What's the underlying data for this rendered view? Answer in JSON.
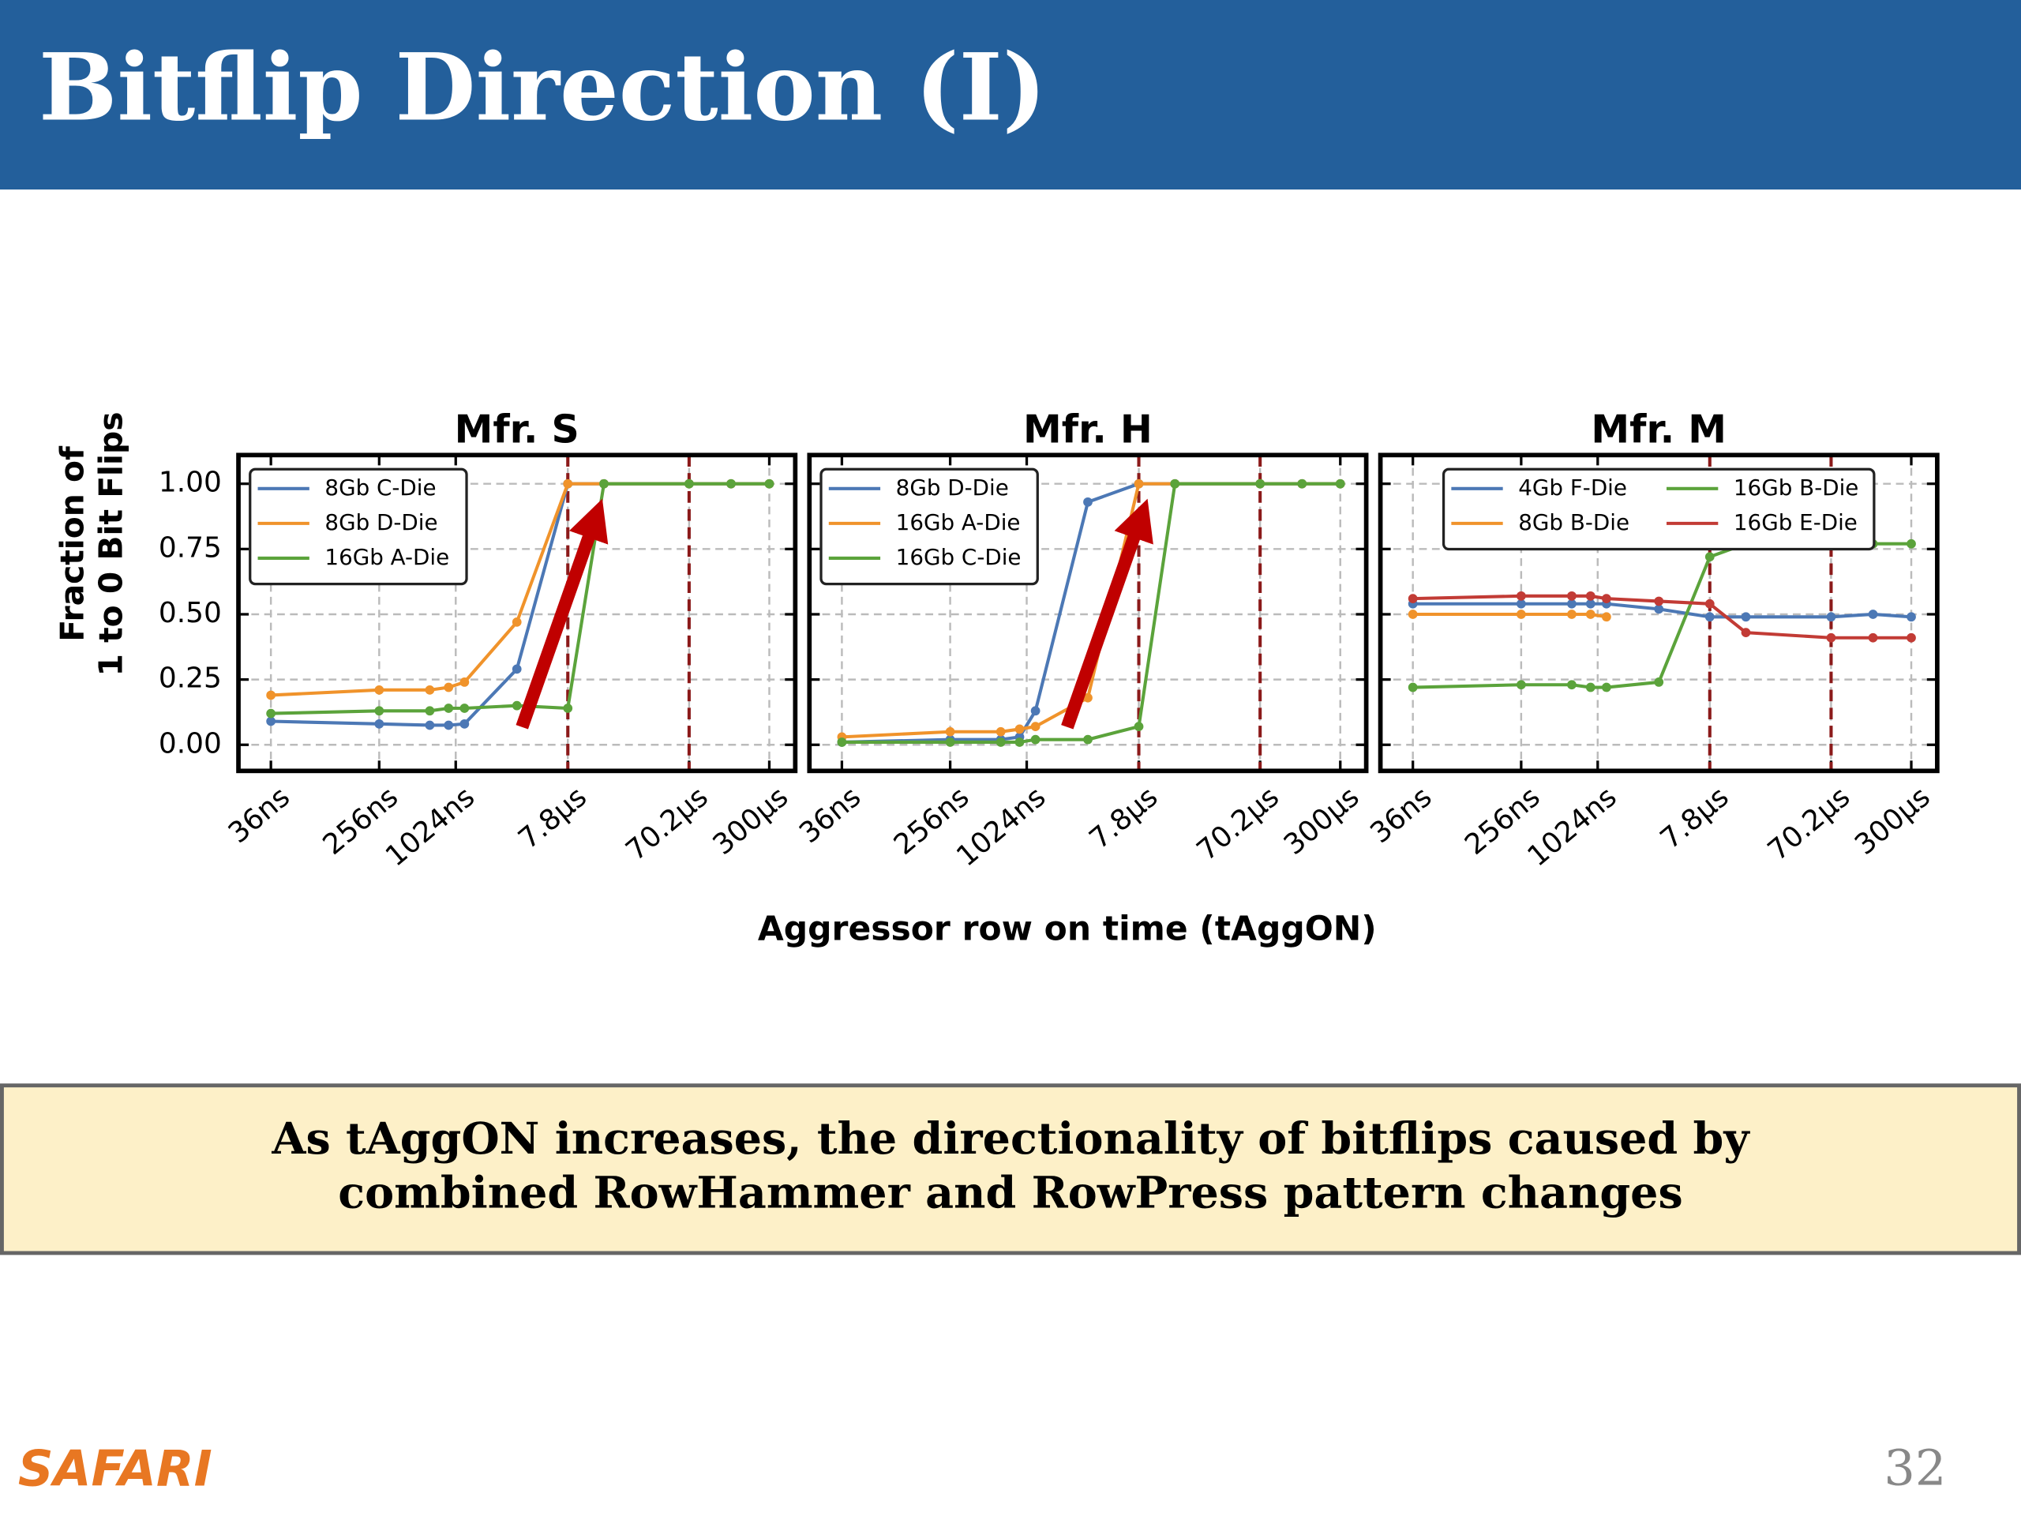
{
  "header": {
    "title": "Bitflip Direction (I)"
  },
  "shared_axes": {
    "xlabel": "Aggressor row on time (tAggON)",
    "ylabel": [
      "Fraction of",
      "1 to 0 Bit Flips"
    ]
  },
  "chart_data": [
    {
      "type": "line",
      "title": "Mfr. S",
      "xscale": "log",
      "grid": true,
      "legend": {
        "loc": "upper left",
        "ncol": 1
      },
      "x": [
        36,
        256,
        640,
        900,
        1200,
        3100,
        7800,
        15000,
        70200,
        150000,
        300000
      ],
      "xlim": [
        20,
        480000
      ],
      "ylim": [
        -0.1,
        1.11
      ],
      "xticks": [
        {
          "value": 36,
          "label": "36ns"
        },
        {
          "value": 256,
          "label": "256ns"
        },
        {
          "value": 1024,
          "label": "1024ns"
        },
        {
          "value": 7800,
          "label": "7.8µs"
        },
        {
          "value": 70200,
          "label": "70.2µs"
        },
        {
          "value": 300000,
          "label": "300µs"
        }
      ],
      "yticks": [
        {
          "value": 0,
          "label": "0.00"
        },
        0.25,
        {
          "value": 0.5,
          "label": "0.50"
        },
        0.75,
        {
          "value": 1,
          "label": "1.00"
        }
      ],
      "vlines": {
        "color": "#8b1a1a",
        "values": [
          7800,
          70200
        ]
      },
      "series": [
        {
          "name": "8Gb C-Die",
          "color": "#4c78b5",
          "values": [
            0.09,
            0.08,
            0.075,
            0.075,
            0.08,
            0.29,
            1.0,
            1.0,
            1.0,
            1.0,
            1.0
          ]
        },
        {
          "name": "8Gb D-Die",
          "color": "#f0932b",
          "values": [
            0.19,
            0.21,
            0.21,
            0.22,
            0.24,
            0.47,
            1.0,
            1.0,
            1.0,
            1.0,
            1.0
          ]
        },
        {
          "name": "16Gb A-Die",
          "color": "#5ba33b",
          "values": [
            0.12,
            0.13,
            0.13,
            0.14,
            0.14,
            0.15,
            0.14,
            1.0,
            1.0,
            1.0,
            1.0
          ]
        }
      ]
    },
    {
      "type": "line",
      "title": "Mfr. H",
      "xscale": "log",
      "grid": true,
      "legend": {
        "loc": "upper left",
        "ncol": 1
      },
      "x": [
        36,
        256,
        640,
        900,
        1200,
        3100,
        7800,
        15000,
        70200,
        150000,
        300000
      ],
      "xlim": [
        20,
        480000
      ],
      "ylim": [
        -0.1,
        1.11
      ],
      "xticks": [
        {
          "value": 36,
          "label": "36ns"
        },
        {
          "value": 256,
          "label": "256ns"
        },
        {
          "value": 1024,
          "label": "1024ns"
        },
        {
          "value": 7800,
          "label": "7.8µs"
        },
        {
          "value": 70200,
          "label": "70.2µs"
        },
        {
          "value": 300000,
          "label": "300µs"
        }
      ],
      "yticks": [
        0,
        0.25,
        0.5,
        0.75,
        1
      ],
      "vlines": {
        "color": "#8b1a1a",
        "values": [
          7800,
          70200
        ]
      },
      "series": [
        {
          "name": "8Gb D-Die",
          "color": "#4c78b5",
          "values": [
            0.01,
            0.02,
            0.02,
            0.03,
            0.13,
            0.93,
            1.0,
            1.0,
            1.0,
            1.0,
            1.0
          ]
        },
        {
          "name": "16Gb A-Die",
          "color": "#f0932b",
          "values": [
            0.03,
            0.05,
            0.05,
            0.06,
            0.07,
            0.18,
            1.0,
            1.0,
            1.0,
            1.0,
            1.0
          ]
        },
        {
          "name": "16Gb C-Die",
          "color": "#5ba33b",
          "values": [
            0.01,
            0.01,
            0.01,
            0.01,
            0.02,
            0.02,
            0.07,
            1.0,
            1.0,
            1.0,
            1.0
          ]
        }
      ]
    },
    {
      "type": "line",
      "title": "Mfr. M",
      "xscale": "log",
      "grid": true,
      "legend": {
        "loc": "upper center",
        "ncol": 2
      },
      "x": [
        36,
        256,
        640,
        900,
        1200,
        3100,
        7800,
        15000,
        70200,
        150000,
        300000
      ],
      "xlim": [
        20,
        480000
      ],
      "ylim": [
        -0.1,
        1.11
      ],
      "xticks": [
        {
          "value": 36,
          "label": "36ns"
        },
        {
          "value": 256,
          "label": "256ns"
        },
        {
          "value": 1024,
          "label": "1024ns"
        },
        {
          "value": 7800,
          "label": "7.8µs"
        },
        {
          "value": 70200,
          "label": "70.2µs"
        },
        {
          "value": 300000,
          "label": "300µs"
        }
      ],
      "yticks": [
        0,
        0.25,
        0.5,
        0.75,
        1
      ],
      "vlines": {
        "color": "#8b1a1a",
        "values": [
          7800,
          70200
        ]
      },
      "series": [
        {
          "name": "4Gb F-Die",
          "color": "#4c78b5",
          "values": [
            0.54,
            0.54,
            0.54,
            0.54,
            0.54,
            0.52,
            0.49,
            0.49,
            0.49,
            0.5,
            0.49
          ]
        },
        {
          "name": "8Gb B-Die",
          "color": "#f0932b",
          "values": [
            0.5,
            0.5,
            0.5,
            0.5,
            0.49,
            null,
            null,
            null,
            null,
            null,
            null
          ]
        },
        {
          "name": "16Gb B-Die",
          "color": "#5ba33b",
          "values": [
            0.22,
            0.23,
            0.23,
            0.22,
            0.22,
            0.24,
            0.72,
            0.77,
            0.77,
            0.77,
            0.77
          ]
        },
        {
          "name": "16Gb E-Die",
          "color": "#c23b35",
          "values": [
            0.56,
            0.57,
            0.57,
            0.57,
            0.56,
            0.55,
            0.54,
            0.43,
            0.41,
            0.41,
            0.41
          ]
        }
      ]
    }
  ],
  "callout": [
    "As tAggON increases, the directionality of bitflips caused by",
    "combined RowHammer and RowPress pattern changes"
  ],
  "footer": {
    "logo": "SAFARI",
    "page": "32"
  }
}
